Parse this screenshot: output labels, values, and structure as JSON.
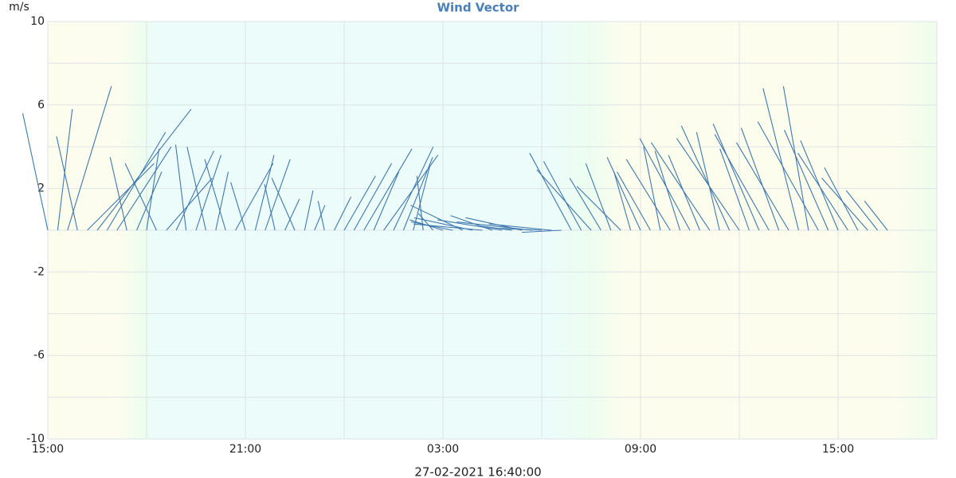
{
  "chart_data": {
    "type": "vector",
    "title": "Wind Vector",
    "y_unit": "m/s",
    "xlabel": "27-02-2021 16:40:00",
    "color": "#3f78ad",
    "xlim": [
      0,
      27
    ],
    "xticks": [
      {
        "value": 0,
        "label": "15:00"
      },
      {
        "value": 6,
        "label": "21:00"
      },
      {
        "value": 12,
        "label": "03:00"
      },
      {
        "value": 18,
        "label": "09:00"
      },
      {
        "value": 24,
        "label": "15:00"
      }
    ],
    "x_minor_ticks": [
      3,
      9,
      15,
      21,
      27
    ],
    "ylim": [
      -10,
      10
    ],
    "yticks": [
      10,
      6,
      2,
      -2,
      -6,
      -10
    ],
    "y_minor_ticks": [
      8,
      4,
      0,
      -4,
      -8
    ],
    "grid": true,
    "x": [
      0,
      0.3,
      0.6,
      0.9,
      1.2,
      1.5,
      1.8,
      2.1,
      2.4,
      2.7,
      3,
      3.3,
      3.6,
      3.9,
      4.2,
      4.5,
      4.8,
      5.1,
      5.4,
      5.7,
      6,
      6.3,
      6.6,
      6.9,
      7.2,
      7.5,
      7.8,
      8.1,
      8.4,
      8.7,
      9,
      9.3,
      9.6,
      9.9,
      10.2,
      10.5,
      10.8,
      11.1,
      11.4,
      11.7,
      12,
      12.3,
      12.6,
      12.9,
      13.2,
      13.5,
      13.8,
      14.1,
      14.4,
      14.7,
      15,
      15.3,
      15.6,
      15.9,
      16.2,
      16.5,
      16.8,
      17.1,
      17.4,
      17.7,
      18,
      18.3,
      18.6,
      18.9,
      19.2,
      19.5,
      19.8,
      20.1,
      20.4,
      20.7,
      21,
      21.3,
      21.6,
      21.9,
      22.2,
      22.5,
      22.8,
      23.1,
      23.4,
      23.7,
      24,
      24.3,
      24.6,
      24.9,
      25.2,
      25.5
    ],
    "u": [
      -1.2,
      0.7,
      2.1,
      -1,
      3.2,
      4.5,
      2.8,
      2.6,
      -0.8,
      1.2,
      0.6,
      -1.5,
      2.2,
      1.8,
      -0.5,
      1.2,
      -0.9,
      0.6,
      -1,
      1.8,
      -0.7,
      0.9,
      1.2,
      -0.5,
      0.7,
      -1.1,
      0.4,
      0.5,
      -0.3,
      0.8,
      1.5,
      1.8,
      2.3,
      1.2,
      2.6,
      1.9,
      1.4,
      0.8,
      -0.3,
      -0.7,
      -1.6,
      -2,
      -2.5,
      -2.8,
      -3.3,
      -2,
      -3.1,
      -1.5,
      -2.7,
      -3.6,
      -2.2,
      -3,
      -1.9,
      -2,
      -1.8,
      -2.6,
      -1.5,
      -1.2,
      -2.1,
      -0.8,
      -1.6,
      -1.6,
      -0.8,
      -2.1,
      -1.2,
      -2.4,
      -1.5,
      -2.8,
      -1.1,
      -2.3,
      -3,
      -1.4,
      -2.2,
      -2.6,
      -1.8,
      -2.5,
      -1.7,
      -1.2,
      -2.9,
      -2.1,
      -1.8,
      -2.4,
      -1.6,
      -2.2,
      -1.5,
      -1.1
    ],
    "v": [
      5.6,
      5.8,
      6.9,
      4.5,
      3.2,
      5.8,
      4.7,
      4,
      3.5,
      2.8,
      3.9,
      3.2,
      2.5,
      3.8,
      4.1,
      3.6,
      4,
      2.8,
      3.4,
      3.2,
      2.3,
      3.6,
      3.4,
      2.2,
      1.5,
      2.5,
      1.9,
      1.2,
      1.4,
      1.6,
      2.6,
      3.2,
      3.9,
      2.8,
      3.6,
      4,
      3.5,
      3.1,
      2.6,
      0.8,
      0.5,
      0.4,
      1.2,
      0.6,
      0.3,
      0.7,
      0.5,
      0.2,
      0.6,
      0.4,
      0.1,
      0.3,
      -0.1,
      3.7,
      3.3,
      2.9,
      2.5,
      3.2,
      2.1,
      2.8,
      3.5,
      2.8,
      4,
      3.4,
      3.8,
      4.4,
      3.6,
      4.2,
      4.7,
      5,
      4.4,
      3.9,
      5.1,
      4.6,
      4.9,
      4.2,
      6.8,
      6.9,
      5.2,
      4.8,
      4.3,
      3.7,
      3,
      2.5,
      1.9,
      1.4
    ]
  }
}
